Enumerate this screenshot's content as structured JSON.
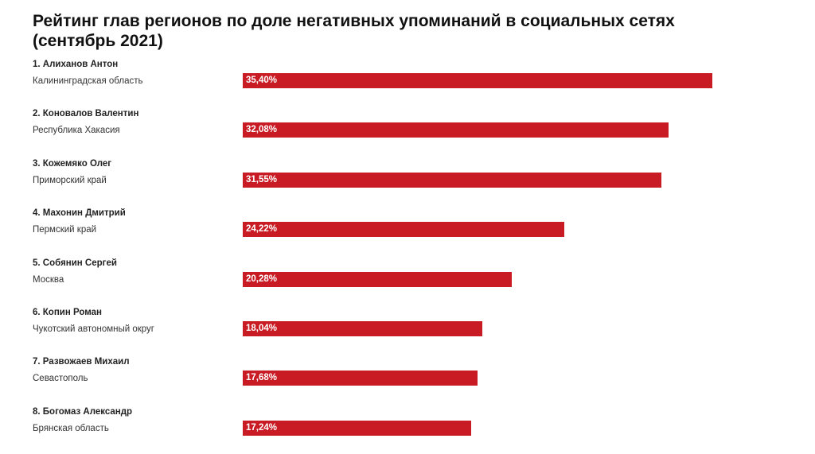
{
  "title": "Рейтинг глав регионов по доле негативных упоминаний в социальных сетях (сентябрь 2021)",
  "bar_color": "#c91b24",
  "rows": [
    {
      "name": "1. Алиханов Антон",
      "region": "Калининградская область",
      "label": "35,40%",
      "value": 35.4
    },
    {
      "name": "2. Коновалов Валентин",
      "region": "Республика Хакасия",
      "label": "32,08%",
      "value": 32.08
    },
    {
      "name": "3. Кожемяко Олег",
      "region": "Приморский край",
      "label": "31,55%",
      "value": 31.55
    },
    {
      "name": "4. Махонин Дмитрий",
      "region": "Пермский край",
      "label": "24,22%",
      "value": 24.22
    },
    {
      "name": "5. Собянин Сергей",
      "region": "Москва",
      "label": "20,28%",
      "value": 20.28
    },
    {
      "name": "6. Копин Роман",
      "region": "Чукотский автономный округ",
      "label": "18,04%",
      "value": 18.04
    },
    {
      "name": "7. Развожаев Михаил",
      "region": "Севастополь",
      "label": "17,68%",
      "value": 17.68
    },
    {
      "name": "8. Богомаз Александр",
      "region": "Брянская область",
      "label": "17,24%",
      "value": 17.24
    }
  ],
  "chart_data": {
    "type": "bar",
    "orientation": "horizontal",
    "title": "Рейтинг глав регионов по доле негативных упоминаний в социальных сетях (сентябрь 2021)",
    "categories": [
      "1. Алиханов Антон — Калининградская область",
      "2. Коновалов Валентин — Республика Хакасия",
      "3. Кожемяко Олег — Приморский край",
      "4. Махонин Дмитрий — Пермский край",
      "5. Собянин Сергей — Москва",
      "6. Копин Роман — Чукотский автономный округ",
      "7. Развожаев Михаил — Севастополь",
      "8. Богомаз Александр — Брянская область"
    ],
    "values": [
      35.4,
      32.08,
      31.55,
      24.22,
      20.28,
      18.04,
      17.68,
      17.24
    ],
    "value_labels": [
      "35,40%",
      "32,08%",
      "31,55%",
      "24,22%",
      "20,28%",
      "18,04%",
      "17,68%",
      "17,24%"
    ],
    "xlabel": "",
    "ylabel": "",
    "unit": "%",
    "grid": false,
    "legend": "none"
  }
}
